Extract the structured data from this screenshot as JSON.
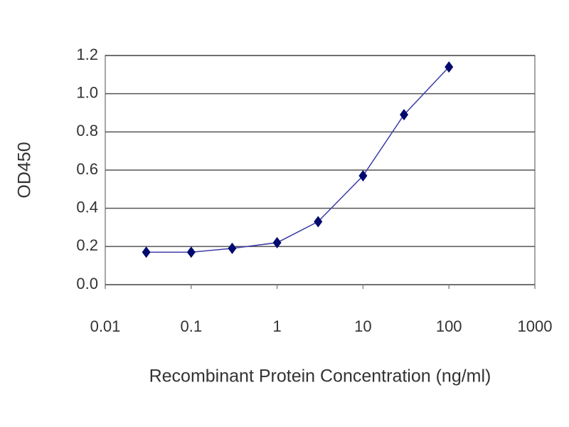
{
  "chart_data": {
    "type": "line",
    "xlabel": "Recombinant Protein Concentration (ng/ml)",
    "ylabel": "OD450",
    "x": [
      0.03,
      0.1,
      0.3,
      1,
      3,
      10,
      30,
      100
    ],
    "values": [
      0.17,
      0.17,
      0.19,
      0.22,
      0.33,
      0.57,
      0.89,
      1.14
    ],
    "color": "#3c3ca8",
    "marker_color": "#000a6e",
    "xscale": "log",
    "xlim": [
      0.01,
      1000
    ],
    "xticks": [
      0.01,
      0.1,
      1,
      10,
      100,
      1000
    ],
    "ylim": [
      0,
      1.2
    ],
    "yticks": [
      {
        "value": 0,
        "label": "0.0"
      },
      0.2,
      0.4,
      0.6,
      0.8,
      {
        "value": 1,
        "label": "1.0"
      },
      1.2
    ],
    "grid": true
  }
}
